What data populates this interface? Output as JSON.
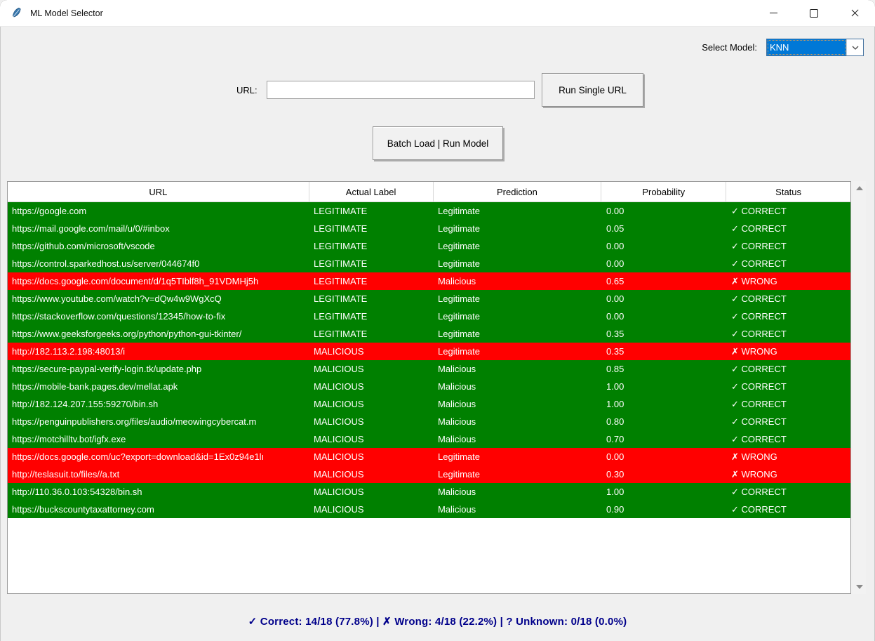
{
  "window": {
    "title": "ML Model Selector",
    "icons": [
      "app-icon",
      "minimize-icon",
      "maximize-icon",
      "close-icon"
    ]
  },
  "model_selector": {
    "label": "Select Model:",
    "selected": "KNN",
    "chevron_icon": "chevron-down-icon",
    "selection_color": "#0078d7"
  },
  "single_url": {
    "label": "URL:",
    "input_value": "",
    "run_button_label": "Run Single URL"
  },
  "batch": {
    "label": "Batch Load | Run Model"
  },
  "table": {
    "columns": [
      "URL",
      "Actual Label",
      "Prediction",
      "Probability",
      "Status"
    ],
    "rows": [
      {
        "url": "https://google.com",
        "actual_label": "LEGITIMATE",
        "prediction": "Legitimate",
        "probability": "0.00",
        "status": "✓ CORRECT"
      },
      {
        "url": "https://mail.google.com/mail/u/0/#inbox",
        "actual_label": "LEGITIMATE",
        "prediction": "Legitimate",
        "probability": "0.05",
        "status": "✓ CORRECT"
      },
      {
        "url": "https://github.com/microsoft/vscode",
        "actual_label": "LEGITIMATE",
        "prediction": "Legitimate",
        "probability": "0.00",
        "status": "✓ CORRECT"
      },
      {
        "url": "https://control.sparkedhost.us/server/044674f0",
        "actual_label": "LEGITIMATE",
        "prediction": "Legitimate",
        "probability": "0.00",
        "status": "✓ CORRECT"
      },
      {
        "url": "https://docs.google.com/document/d/1q5TIblf8h_91VDMHj5h",
        "actual_label": "LEGITIMATE",
        "prediction": "Malicious",
        "probability": "0.65",
        "status": "✗ WRONG"
      },
      {
        "url": "https://www.youtube.com/watch?v=dQw4w9WgXcQ",
        "actual_label": "LEGITIMATE",
        "prediction": "Legitimate",
        "probability": "0.00",
        "status": "✓ CORRECT"
      },
      {
        "url": "https://stackoverflow.com/questions/12345/how-to-fix",
        "actual_label": "LEGITIMATE",
        "prediction": "Legitimate",
        "probability": "0.00",
        "status": "✓ CORRECT"
      },
      {
        "url": "https://www.geeksforgeeks.org/python/python-gui-tkinter/",
        "actual_label": "LEGITIMATE",
        "prediction": "Legitimate",
        "probability": "0.35",
        "status": "✓ CORRECT"
      },
      {
        "url": "http://182.113.2.198:48013/i",
        "actual_label": "MALICIOUS",
        "prediction": "Legitimate",
        "probability": "0.35",
        "status": "✗ WRONG"
      },
      {
        "url": "https://secure-paypal-verify-login.tk/update.php",
        "actual_label": "MALICIOUS",
        "prediction": "Malicious",
        "probability": "0.85",
        "status": "✓ CORRECT"
      },
      {
        "url": "https://mobile-bank.pages.dev/mellat.apk",
        "actual_label": "MALICIOUS",
        "prediction": "Malicious",
        "probability": "1.00",
        "status": "✓ CORRECT"
      },
      {
        "url": "http://182.124.207.155:59270/bin.sh",
        "actual_label": "MALICIOUS",
        "prediction": "Malicious",
        "probability": "1.00",
        "status": "✓ CORRECT"
      },
      {
        "url": "https://penguinpublishers.org/files/audio/meowingcybercat.m",
        "actual_label": "MALICIOUS",
        "prediction": "Malicious",
        "probability": "0.80",
        "status": "✓ CORRECT"
      },
      {
        "url": "https://motchilltv.bot/igfx.exe",
        "actual_label": "MALICIOUS",
        "prediction": "Malicious",
        "probability": "0.70",
        "status": "✓ CORRECT"
      },
      {
        "url": "https://docs.google.com/uc?export=download&id=1Ex0z94e1lı",
        "actual_label": "MALICIOUS",
        "prediction": "Legitimate",
        "probability": "0.00",
        "status": "✗ WRONG"
      },
      {
        "url": "http://teslasuit.to/files//a.txt",
        "actual_label": "MALICIOUS",
        "prediction": "Legitimate",
        "probability": "0.30",
        "status": "✗ WRONG"
      },
      {
        "url": "http://110.36.0.103:54328/bin.sh",
        "actual_label": "MALICIOUS",
        "prediction": "Malicious",
        "probability": "1.00",
        "status": "✓ CORRECT"
      },
      {
        "url": "https://buckscountytaxattorney.com",
        "actual_label": "MALICIOUS",
        "prediction": "Malicious",
        "probability": "0.90",
        "status": "✓ CORRECT"
      }
    ]
  },
  "summary": {
    "text": "✓ Correct: 14/18 (77.8%) | ✗ Wrong: 4/18 (22.2%) | ? Unknown: 0/18 (0.0%)"
  },
  "colors": {
    "correct_row": "#008000",
    "wrong_row": "#ff0000",
    "row_text": "#ffffff",
    "selection_blue": "#0078d7",
    "summary_text": "#00008b"
  }
}
